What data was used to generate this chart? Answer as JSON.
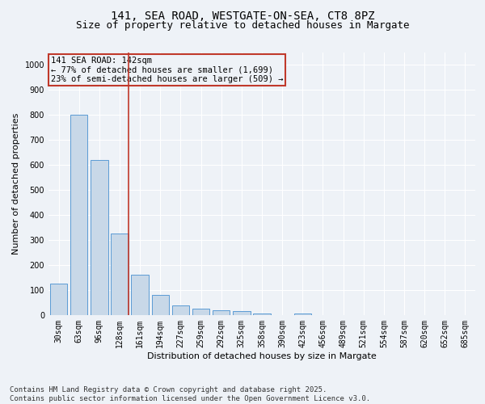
{
  "title": "141, SEA ROAD, WESTGATE-ON-SEA, CT8 8PZ",
  "subtitle": "Size of property relative to detached houses in Margate",
  "xlabel": "Distribution of detached houses by size in Margate",
  "ylabel": "Number of detached properties",
  "categories": [
    "30sqm",
    "63sqm",
    "96sqm",
    "128sqm",
    "161sqm",
    "194sqm",
    "227sqm",
    "259sqm",
    "292sqm",
    "325sqm",
    "358sqm",
    "390sqm",
    "423sqm",
    "456sqm",
    "489sqm",
    "521sqm",
    "554sqm",
    "587sqm",
    "620sqm",
    "652sqm",
    "685sqm"
  ],
  "values": [
    125,
    800,
    620,
    325,
    160,
    80,
    38,
    25,
    20,
    15,
    8,
    0,
    5,
    0,
    0,
    0,
    0,
    0,
    0,
    0,
    0
  ],
  "bar_color": "#c8d8e8",
  "bar_edge_color": "#5b9bd5",
  "vline_color": "#c0392b",
  "annotation_line1": "141 SEA ROAD: 142sqm",
  "annotation_line2": "← 77% of detached houses are smaller (1,699)",
  "annotation_line3": "23% of semi-detached houses are larger (509) →",
  "annotation_box_color": "#c0392b",
  "ylim": [
    0,
    1050
  ],
  "yticks": [
    0,
    100,
    200,
    300,
    400,
    500,
    600,
    700,
    800,
    900,
    1000
  ],
  "bg_color": "#eef2f7",
  "grid_color": "#ffffff",
  "footer_line1": "Contains HM Land Registry data © Crown copyright and database right 2025.",
  "footer_line2": "Contains public sector information licensed under the Open Government Licence v3.0.",
  "title_fontsize": 10,
  "subtitle_fontsize": 9,
  "axis_label_fontsize": 8,
  "tick_fontsize": 7,
  "annotation_fontsize": 7.5,
  "footer_fontsize": 6.5
}
